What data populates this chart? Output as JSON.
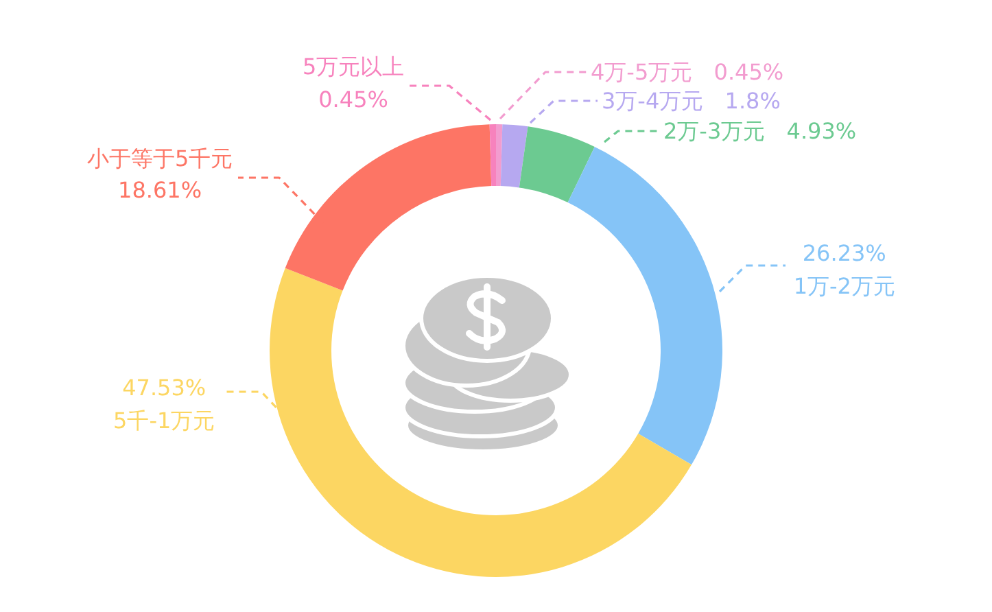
{
  "chart_data": {
    "type": "donut",
    "categories": [
      "4万-5万元",
      "3万-4万元",
      "2万-3万元",
      "1万-2万元",
      "5千-1万元",
      "小于等于5千元",
      "5万元以上"
    ],
    "values": [
      0.45,
      1.8,
      4.93,
      26.23,
      47.53,
      18.61,
      0.45
    ],
    "colors": [
      "#f29ccf",
      "#b6a8f0",
      "#6cca91",
      "#85c4f7",
      "#fcd662",
      "#fd7565",
      "#f782bd"
    ],
    "value_labels": [
      "0.45%",
      "1.8%",
      "4.93%",
      "26.23%",
      "47.53%",
      "18.61%",
      "0.45%"
    ]
  }
}
